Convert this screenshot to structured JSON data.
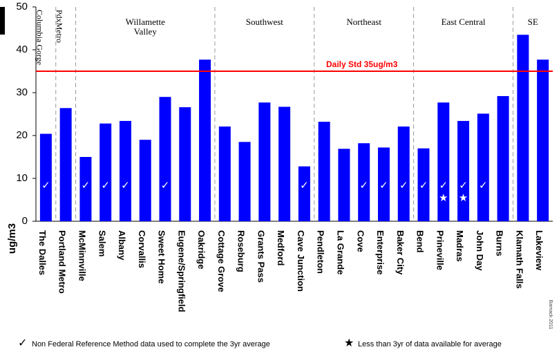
{
  "chart_data": {
    "type": "bar",
    "y_label": "ug/m3",
    "categories": [
      "The Dalles",
      "Portland Metro",
      "McMinnville",
      "Salem",
      "Albany",
      "Corvallis",
      "Sweet Home",
      "Eugene/Springfield",
      "Oakridge",
      "Cottage Grove",
      "Roseburg",
      "Grants Pass",
      "Medford",
      "Cave Junction",
      "Pendleton",
      "La Grande",
      "Cove",
      "Enterprise",
      "Baker City",
      "Bend",
      "Prineville",
      "Madras",
      "John Day",
      "Burns",
      "Klamath Falls",
      "Lakeview"
    ],
    "values": [
      20.4,
      26.4,
      15,
      22.8,
      23.4,
      19,
      29,
      26.6,
      37.7,
      22.1,
      18.5,
      27.7,
      26.7,
      12.8,
      23.2,
      16.9,
      18.2,
      17.2,
      22.1,
      17,
      27.7,
      23.4,
      25.1,
      29.2,
      43.5,
      37.7
    ],
    "color": "#0000ff",
    "nfrm": [
      true,
      false,
      true,
      true,
      true,
      false,
      true,
      false,
      false,
      false,
      false,
      false,
      false,
      true,
      false,
      false,
      true,
      true,
      true,
      true,
      true,
      true,
      true,
      false,
      false,
      false
    ],
    "partial": [
      false,
      false,
      false,
      false,
      false,
      false,
      false,
      false,
      false,
      false,
      false,
      false,
      false,
      false,
      false,
      false,
      false,
      false,
      false,
      false,
      true,
      true,
      false,
      false,
      false,
      false
    ],
    "ylim": [
      0,
      50
    ],
    "yticks": [
      0,
      10,
      20,
      30,
      40,
      50
    ],
    "reference": {
      "value": 35,
      "label": "Daily Std 35ug/m3",
      "color": "#ff0000"
    },
    "regions": [
      {
        "name": [
          "Columbia Gorge"
        ],
        "span": 1,
        "vertical": true
      },
      {
        "name": [
          "PdxMetro"
        ],
        "span": 1,
        "vertical": true
      },
      {
        "name": [
          "Willamette",
          "Valley"
        ],
        "span": 7
      },
      {
        "name": [
          "Southwest"
        ],
        "span": 5
      },
      {
        "name": [
          "Northeast"
        ],
        "span": 5
      },
      {
        "name": [
          "East Central"
        ],
        "span": 5
      },
      {
        "name": [
          "SE"
        ],
        "span": 2
      }
    ],
    "legend": [
      {
        "symbol": "✓",
        "text": "Non Federal Reference Method data used to complete the 3yr average"
      },
      {
        "symbol": "★",
        "text": "Less than 3yr of data available for average"
      }
    ],
    "credit": "Barnack 2011"
  }
}
